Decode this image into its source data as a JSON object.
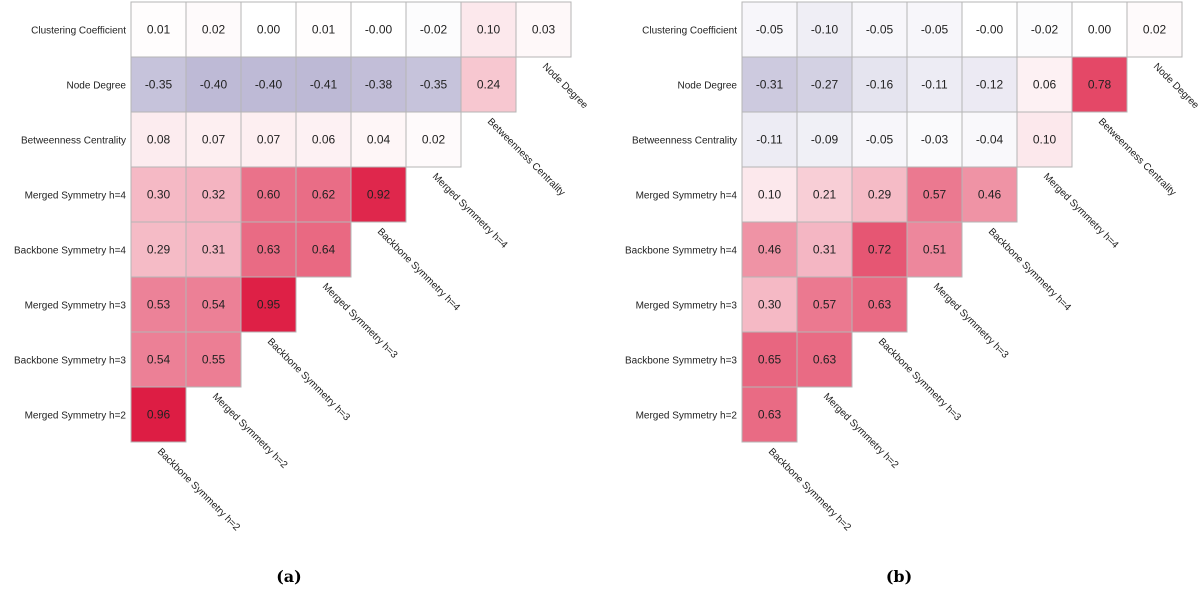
{
  "chart_data": [
    {
      "type": "heatmap",
      "caption": "(a)",
      "rows": [
        "Clustering Coefficient",
        "Node Degree",
        "Betweenness Centrality",
        "Merged Symmetry h=4",
        "Backbone Symmetry h=4",
        "Merged Symmetry h=3",
        "Backbone Symmetry h=3",
        "Merged Symmetry h=2"
      ],
      "columns": [
        "Backbone Symmetry h=2",
        "Merged Symmetry h=2",
        "Backbone Symmetry h=3",
        "Merged Symmetry h=3",
        "Backbone Symmetry h=4",
        "Merged Symmetry h=4",
        "Betweenness Centrality",
        "Node Degree"
      ],
      "values": [
        [
          "0.01",
          "0.02",
          "0.00",
          "0.01",
          "-0.00",
          "-0.02",
          "0.10",
          "0.03"
        ],
        [
          "-0.35",
          "-0.40",
          "-0.40",
          "-0.41",
          "-0.38",
          "-0.35",
          "0.24"
        ],
        [
          "0.08",
          "0.07",
          "0.07",
          "0.06",
          "0.04",
          "0.02"
        ],
        [
          "0.30",
          "0.32",
          "0.60",
          "0.62",
          "0.92"
        ],
        [
          "0.29",
          "0.31",
          "0.63",
          "0.64"
        ],
        [
          "0.53",
          "0.54",
          "0.95"
        ],
        [
          "0.54",
          "0.55"
        ],
        [
          "0.96"
        ]
      ],
      "colors": {
        "positive": "#dc143c",
        "negative": "#5a5096",
        "neutral": "#ffffff"
      },
      "grid": true,
      "legend": "none"
    },
    {
      "type": "heatmap",
      "caption": "(b)",
      "rows": [
        "Clustering Coefficient",
        "Node Degree",
        "Betweenness Centrality",
        "Merged Symmetry h=4",
        "Backbone Symmetry h=4",
        "Merged Symmetry h=3",
        "Backbone Symmetry h=3",
        "Merged Symmetry h=2"
      ],
      "columns": [
        "Backbone Symmetry h=2",
        "Merged Symmetry h=2",
        "Backbone Symmetry h=3",
        "Merged Symmetry h=3",
        "Backbone Symmetry h=4",
        "Merged Symmetry h=4",
        "Betweenness Centrality",
        "Node Degree"
      ],
      "values": [
        [
          "-0.05",
          "-0.10",
          "-0.05",
          "-0.05",
          "-0.00",
          "-0.02",
          "0.00",
          "0.02"
        ],
        [
          "-0.31",
          "-0.27",
          "-0.16",
          "-0.11",
          "-0.12",
          "0.06",
          "0.78"
        ],
        [
          "-0.11",
          "-0.09",
          "-0.05",
          "-0.03",
          "-0.04",
          "0.10"
        ],
        [
          "0.10",
          "0.21",
          "0.29",
          "0.57",
          "0.46"
        ],
        [
          "0.46",
          "0.31",
          "0.72",
          "0.51"
        ],
        [
          "0.30",
          "0.57",
          "0.63"
        ],
        [
          "0.65",
          "0.63"
        ],
        [
          "0.63"
        ]
      ],
      "colors": {
        "positive": "#dc143c",
        "negative": "#5a5096",
        "neutral": "#ffffff"
      },
      "grid": true,
      "legend": "none"
    }
  ]
}
